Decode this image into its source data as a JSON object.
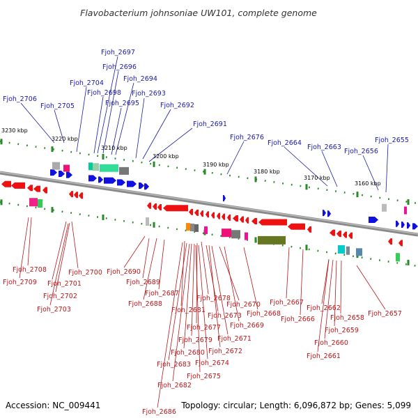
{
  "title": "Flavobacterium johnsoniae UW101, complete genome",
  "footer": {
    "accession": "Accession: NC_009441",
    "summary": "Topology: circular; Length: 6,096,872 bp; Genes: 5,099"
  },
  "colors": {
    "forward_label": "#1a1aa6",
    "reverse_label": "#b8161a",
    "forward_gene": "#1010e0",
    "reverse_gene": "#ee1111",
    "backbone": "#888888",
    "tick": "#2a8a2a"
  },
  "scale_ticks": [
    "3230 kbp",
    "3220 kbp",
    "3210 kbp",
    "3200 kbp",
    "3190 kbp",
    "3180 kbp",
    "3170 kbp",
    "3160 kbp"
  ],
  "forward_genes": [
    "Fjoh_2706",
    "Fjoh_2705",
    "Fjoh_2704",
    "Fjoh_2698",
    "Fjoh_2697",
    "Fjoh_2696",
    "Fjoh_2695",
    "Fjoh_2694",
    "Fjoh_2693",
    "Fjoh_2692",
    "Fjoh_2691",
    "Fjoh_2676",
    "Fjoh_2664",
    "Fjoh_2663",
    "Fjoh_2656",
    "Fjoh_2655"
  ],
  "reverse_genes": [
    "Fjoh_2708",
    "Fjoh_2709",
    "Fjoh_2701",
    "Fjoh_2700",
    "Fjoh_2702",
    "Fjoh_2703",
    "Fjoh_2690",
    "Fjoh_2689",
    "Fjoh_2688",
    "Fjoh_2687",
    "Fjoh_2681",
    "Fjoh_2678",
    "Fjoh_2677",
    "Fjoh_2679",
    "Fjoh_2680",
    "Fjoh_2683",
    "Fjoh_2682",
    "Fjoh_2686",
    "Fjoh_2673",
    "Fjoh_2671",
    "Fjoh_2674",
    "Fjoh_2675",
    "Fjoh_2672",
    "Fjoh_2670",
    "Fjoh_2669",
    "Fjoh_2668",
    "Fjoh_2667",
    "Fjoh_2666",
    "Fjoh_2662",
    "Fjoh_2658",
    "Fjoh_2659",
    "Fjoh_2660",
    "Fjoh_2661",
    "Fjoh_2657"
  ]
}
